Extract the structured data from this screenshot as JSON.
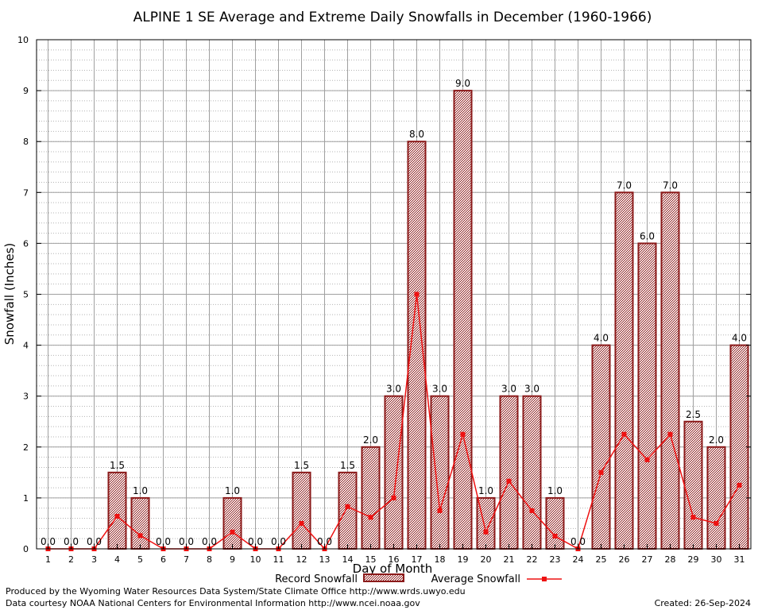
{
  "chart_data": {
    "type": "bar",
    "title": "ALPINE 1 SE Average and Extreme Daily Snowfalls in December (1960-1966)",
    "xlabel": "Day of Month",
    "ylabel": "Snowfall (Inches)",
    "ylim": [
      0,
      10
    ],
    "yticks": [
      "0",
      "1",
      "2",
      "3",
      "4",
      "5",
      "6",
      "7",
      "8",
      "9",
      "10"
    ],
    "grid": true,
    "categories": [
      "1",
      "2",
      "3",
      "4",
      "5",
      "6",
      "7",
      "8",
      "9",
      "10",
      "11",
      "12",
      "13",
      "14",
      "15",
      "16",
      "17",
      "18",
      "19",
      "20",
      "21",
      "22",
      "23",
      "24",
      "25",
      "26",
      "27",
      "28",
      "29",
      "30",
      "31"
    ],
    "series": [
      {
        "name": "Record Snowfall",
        "type": "bar",
        "values": [
          0.0,
          0.0,
          0.0,
          1.5,
          1.0,
          0.0,
          0.0,
          0.0,
          1.0,
          0.0,
          0.0,
          1.5,
          0.0,
          1.5,
          2.0,
          3.0,
          8.0,
          3.0,
          9.0,
          1.0,
          3.0,
          3.0,
          1.0,
          0.0,
          4.0,
          7.0,
          6.0,
          7.0,
          2.5,
          2.0,
          4.0
        ],
        "labels": [
          "0.0",
          "0.0",
          "0.0",
          "1.5",
          "1.0",
          "0.0",
          "0.0",
          "0.0",
          "1.0",
          "0.0",
          "0.0",
          "1.5",
          "0.0",
          "1.5",
          "2.0",
          "3.0",
          "8.0",
          "3.0",
          "9.0",
          "1.0",
          "3.0",
          "3.0",
          "1.0",
          "0.0",
          "4.0",
          "7.0",
          "6.0",
          "7.0",
          "2.5",
          "2.0",
          "4.0"
        ],
        "color": "#8b1a1a"
      },
      {
        "name": "Average Snowfall",
        "type": "line",
        "values": [
          0.0,
          0.0,
          0.0,
          0.64,
          0.26,
          0.0,
          0.0,
          0.0,
          0.33,
          0.0,
          0.0,
          0.5,
          0.0,
          0.83,
          0.62,
          1.0,
          5.0,
          0.75,
          2.25,
          0.33,
          1.33,
          0.75,
          0.25,
          0.0,
          1.5,
          2.25,
          1.75,
          2.25,
          0.62,
          0.5,
          1.25
        ],
        "color": "#ee1111"
      }
    ],
    "legend_position": "bottom-center"
  },
  "footer": {
    "produced_by": "Produced by the Wyoming Water Resources Data System/State Climate Office http://www.wrds.uwyo.edu",
    "data_courtesy": "Data courtesy NOAA National Centers for Environmental Information http://www.ncei.noaa.gov",
    "created": "Created:  26-Sep-2024"
  }
}
